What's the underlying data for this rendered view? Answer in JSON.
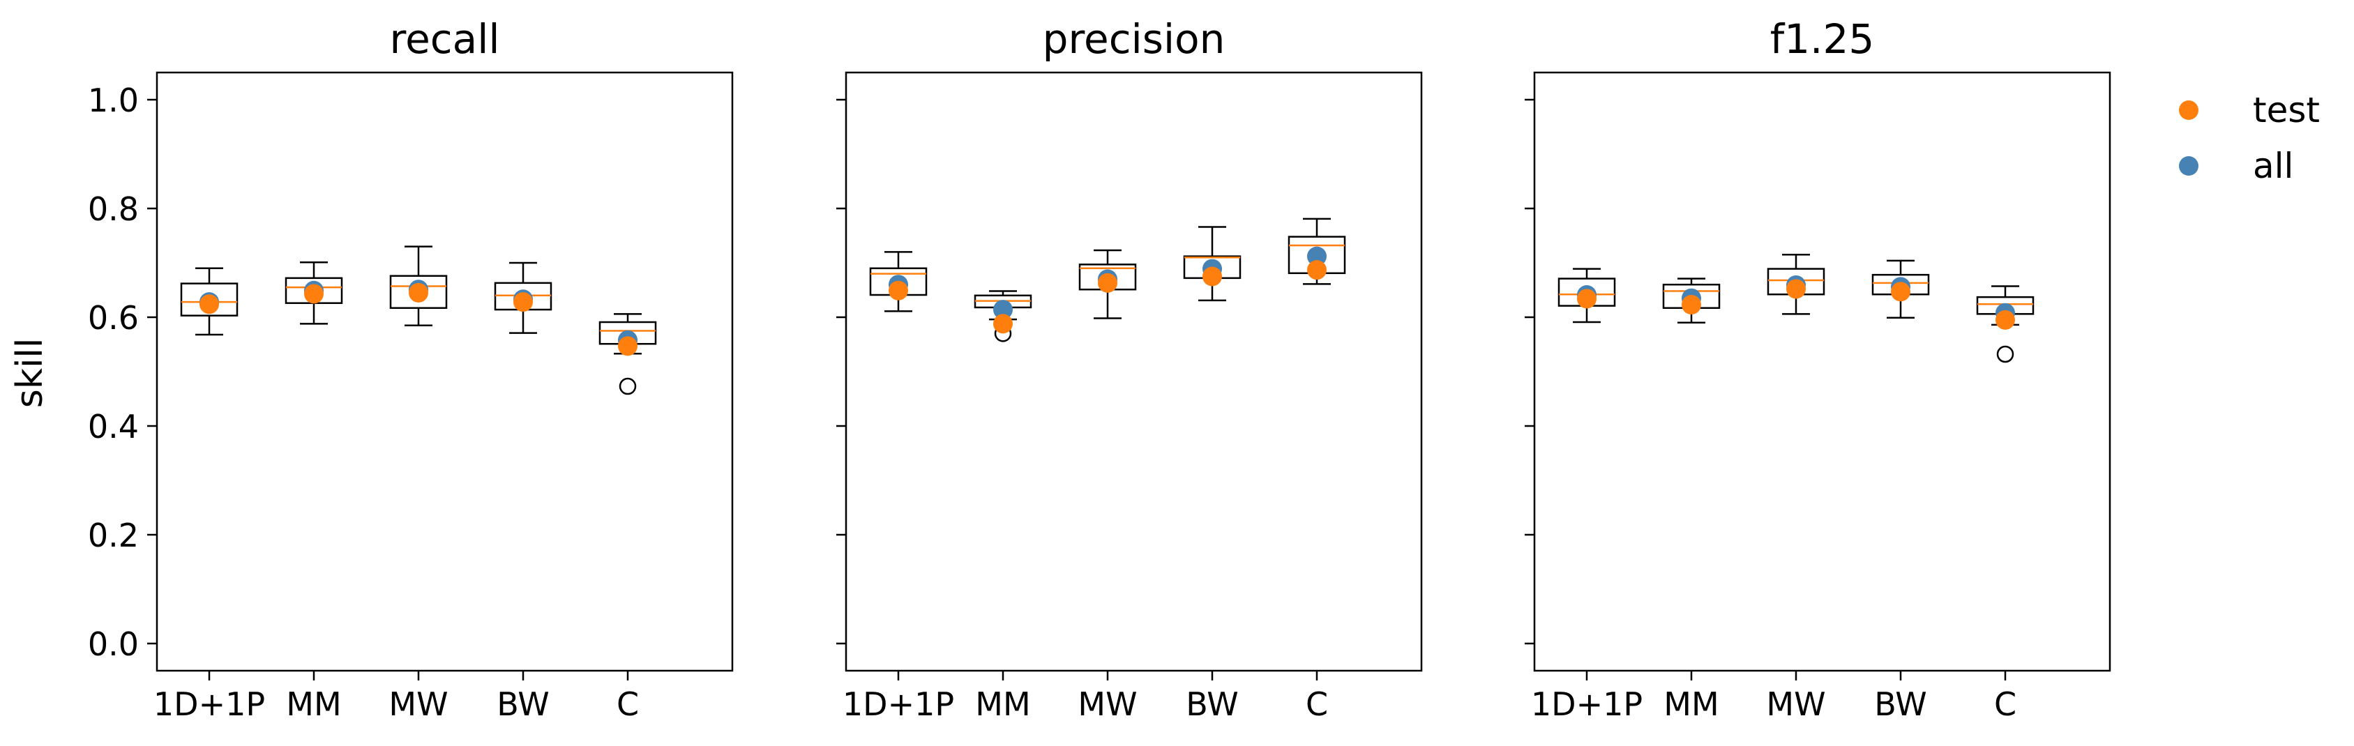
{
  "colors": {
    "test": "#ff7f0e",
    "all": "#4682b4",
    "median": "#ff7f0e",
    "box": "#000000"
  },
  "ylabel": "skill",
  "legend": {
    "placement": "outside-top-right",
    "items": [
      {
        "label": "test"
      },
      {
        "label": "all"
      }
    ]
  },
  "chart_data": [
    {
      "type": "box",
      "title": "recall",
      "xlabel": "",
      "ylabel": "skill",
      "ylim": [
        -0.05,
        1.05
      ],
      "yticks": [
        "0.0",
        "0.2",
        "0.4",
        "0.6",
        "0.8",
        "1.0"
      ],
      "categories": [
        "1D+1P",
        "MM",
        "MW",
        "BW",
        "C"
      ],
      "boxes": [
        {
          "whislo": 0.568,
          "q1": 0.603,
          "med": 0.628,
          "q3": 0.662,
          "whishi": 0.69,
          "fliers": []
        },
        {
          "whislo": 0.588,
          "q1": 0.626,
          "med": 0.655,
          "q3": 0.672,
          "whishi": 0.701,
          "fliers": []
        },
        {
          "whislo": 0.585,
          "q1": 0.617,
          "med": 0.657,
          "q3": 0.676,
          "whishi": 0.73,
          "fliers": []
        },
        {
          "whislo": 0.571,
          "q1": 0.614,
          "med": 0.64,
          "q3": 0.663,
          "whishi": 0.7,
          "fliers": []
        },
        {
          "whislo": 0.533,
          "q1": 0.551,
          "med": 0.575,
          "q3": 0.591,
          "whishi": 0.606,
          "fliers": [
            0.473
          ]
        }
      ],
      "series": [
        {
          "name": "all",
          "values": [
            0.628,
            0.649,
            0.651,
            0.633,
            0.558
          ]
        },
        {
          "name": "test",
          "values": [
            0.624,
            0.643,
            0.645,
            0.628,
            0.547
          ]
        }
      ]
    },
    {
      "type": "box",
      "title": "precision",
      "xlabel": "",
      "ylabel": "",
      "ylim": [
        -0.05,
        1.05
      ],
      "yticks": [
        "0.0",
        "0.2",
        "0.4",
        "0.6",
        "0.8",
        "1.0"
      ],
      "categories": [
        "1D+1P",
        "MM",
        "MW",
        "BW",
        "C"
      ],
      "boxes": [
        {
          "whislo": 0.611,
          "q1": 0.641,
          "med": 0.68,
          "q3": 0.69,
          "whishi": 0.72,
          "fliers": []
        },
        {
          "whislo": 0.596,
          "q1": 0.618,
          "med": 0.63,
          "q3": 0.64,
          "whishi": 0.648,
          "fliers": [
            0.57
          ]
        },
        {
          "whislo": 0.598,
          "q1": 0.651,
          "med": 0.69,
          "q3": 0.697,
          "whishi": 0.723,
          "fliers": []
        },
        {
          "whislo": 0.631,
          "q1": 0.672,
          "med": 0.71,
          "q3": 0.712,
          "whishi": 0.766,
          "fliers": []
        },
        {
          "whislo": 0.661,
          "q1": 0.681,
          "med": 0.732,
          "q3": 0.748,
          "whishi": 0.781,
          "fliers": []
        }
      ],
      "series": [
        {
          "name": "all",
          "values": [
            0.66,
            0.614,
            0.67,
            0.689,
            0.712
          ]
        },
        {
          "name": "test",
          "values": [
            0.649,
            0.588,
            0.663,
            0.675,
            0.687
          ]
        }
      ]
    },
    {
      "type": "box",
      "title": "f1.25",
      "xlabel": "",
      "ylabel": "",
      "ylim": [
        -0.05,
        1.05
      ],
      "yticks": [
        "0.0",
        "0.2",
        "0.4",
        "0.6",
        "0.8",
        "1.0"
      ],
      "categories": [
        "1D+1P",
        "MM",
        "MW",
        "BW",
        "C"
      ],
      "boxes": [
        {
          "whislo": 0.591,
          "q1": 0.621,
          "med": 0.642,
          "q3": 0.671,
          "whishi": 0.689,
          "fliers": []
        },
        {
          "whislo": 0.59,
          "q1": 0.617,
          "med": 0.648,
          "q3": 0.66,
          "whishi": 0.671,
          "fliers": []
        },
        {
          "whislo": 0.606,
          "q1": 0.642,
          "med": 0.668,
          "q3": 0.689,
          "whishi": 0.715,
          "fliers": []
        },
        {
          "whislo": 0.599,
          "q1": 0.642,
          "med": 0.663,
          "q3": 0.678,
          "whishi": 0.704,
          "fliers": []
        },
        {
          "whislo": 0.586,
          "q1": 0.606,
          "med": 0.624,
          "q3": 0.637,
          "whishi": 0.657,
          "fliers": [
            0.532
          ]
        }
      ],
      "series": [
        {
          "name": "all",
          "values": [
            0.641,
            0.635,
            0.659,
            0.656,
            0.608
          ]
        },
        {
          "name": "test",
          "values": [
            0.634,
            0.623,
            0.652,
            0.647,
            0.595
          ]
        }
      ]
    }
  ]
}
